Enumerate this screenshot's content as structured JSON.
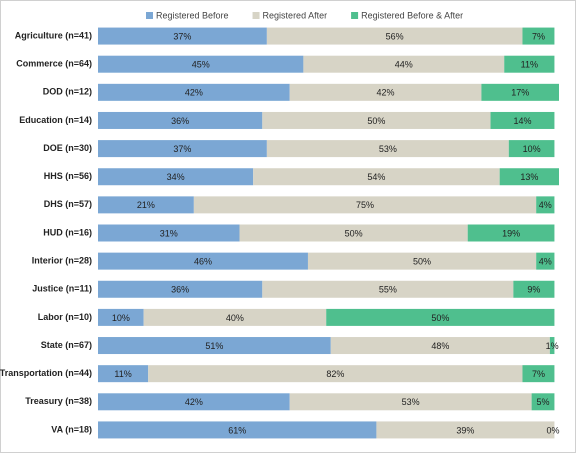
{
  "chart_data": {
    "type": "stacked-bar-horizontal",
    "categories": [
      "Agriculture (n=41)",
      "Commerce (n=64)",
      "DOD (n=12)",
      "Education (n=14)",
      "DOE (n=30)",
      "HHS (n=56)",
      "DHS (n=57)",
      "HUD (n=16)",
      "Interior (n=28)",
      "Justice (n=11)",
      "Labor (n=10)",
      "State (n=67)",
      "Transportation (n=44)",
      "Treasury (n=38)",
      "VA (n=18)"
    ],
    "series": [
      {
        "name": "Registered Before",
        "color": "#7ba7d4",
        "values": [
          37,
          45,
          42,
          36,
          37,
          34,
          21,
          31,
          46,
          36,
          10,
          51,
          11,
          42,
          61
        ],
        "value_labels": [
          "37%",
          "45%",
          "42%",
          "36%",
          "37%",
          "34%",
          "21%",
          "31%",
          "46%",
          "36%",
          "10%",
          "51%",
          "11%",
          "42%",
          "61%"
        ]
      },
      {
        "name": "Registered After",
        "color": "#d7d4c6",
        "values": [
          56,
          44,
          42,
          50,
          53,
          54,
          75,
          50,
          50,
          55,
          40,
          48,
          82,
          53,
          39
        ],
        "value_labels": [
          "56%",
          "44%",
          "42%",
          "50%",
          "53%",
          "54%",
          "75%",
          "50%",
          "50%",
          "55%",
          "40%",
          "48%",
          "82%",
          "53%",
          "39%"
        ]
      },
      {
        "name": "Registered Before & After",
        "color": "#4fbf8e",
        "values": [
          7,
          11,
          17,
          14,
          10,
          13,
          4,
          19,
          4,
          9,
          50,
          1,
          7,
          5,
          0
        ],
        "value_labels": [
          "7%",
          "11%",
          "17%",
          "14%",
          "10%",
          "13%",
          "4%",
          "19%",
          "4%",
          "9%",
          "50%",
          "1%",
          "7%",
          "5%",
          "0%"
        ]
      }
    ]
  }
}
